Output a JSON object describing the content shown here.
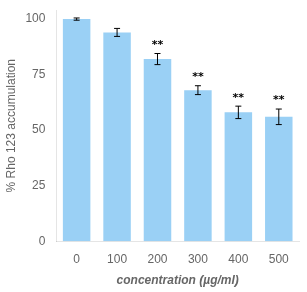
{
  "chart_data": {
    "type": "bar",
    "categories": [
      "0",
      "100",
      "200",
      "300",
      "400",
      "500"
    ],
    "values": [
      100.0,
      94.0,
      82.0,
      68.0,
      58.0,
      56.0
    ],
    "errors": [
      0.5,
      1.8,
      2.5,
      2.0,
      2.8,
      3.5
    ],
    "annotations": [
      {
        "x": "200",
        "text": "**"
      },
      {
        "x": "300",
        "text": "**"
      },
      {
        "x": "400",
        "text": "**"
      },
      {
        "x": "500",
        "text": "**"
      }
    ],
    "xlabel": "concentration (µg/ml)",
    "ylabel": "% Rho 123 accumulation",
    "ylim": [
      0,
      104
    ],
    "yticks": [
      0,
      25,
      50,
      75,
      100
    ],
    "grid": false
  }
}
